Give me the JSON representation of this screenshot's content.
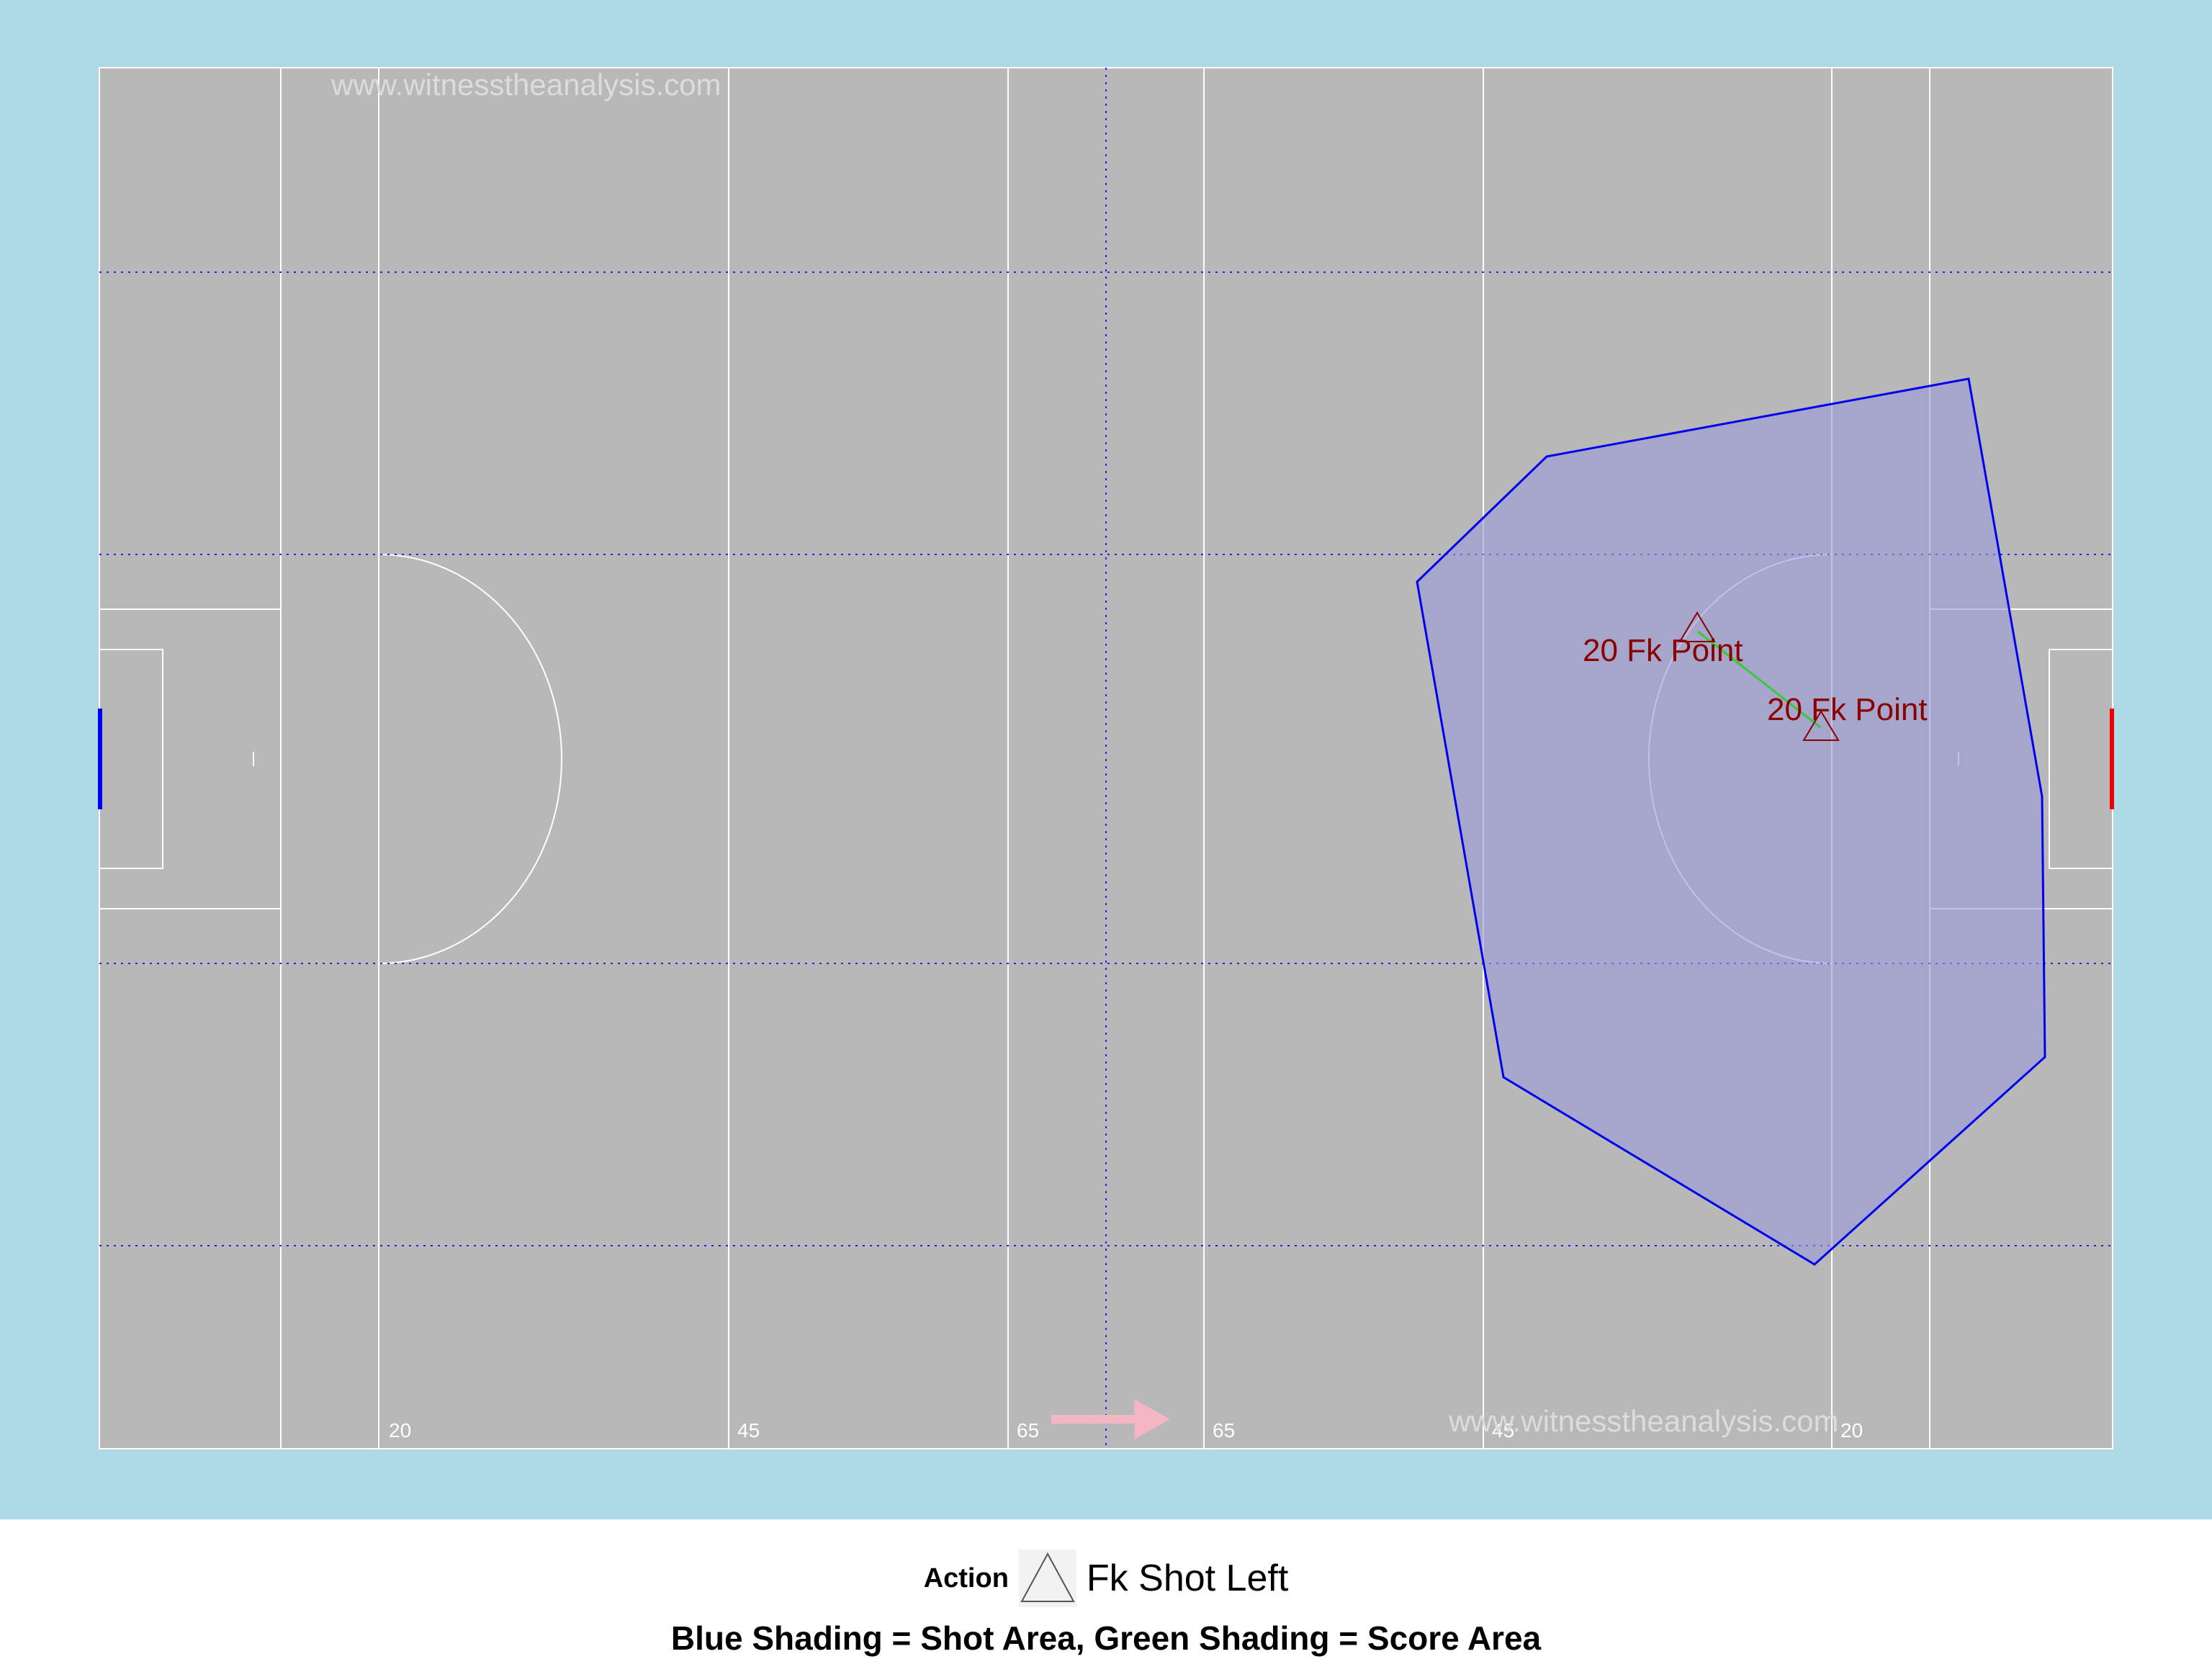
{
  "colors": {
    "background": "#add8e6",
    "pitch": "#b8b8b8",
    "pitch_lines": "#ffffff",
    "guide_lines": "#2222ee",
    "shot_area_fill": "#9a9ad8",
    "shot_area_stroke": "#0000ee",
    "marker_stroke": "#8b0000",
    "marker_label": "#8b0000",
    "connector": "#33cc33",
    "left_goal": "#0000ee",
    "right_goal": "#ee0000",
    "direction_arrow": "#f4b6c2",
    "watermark": "#dcdcdc"
  },
  "watermarks": [
    "www.witnesstheanalysis.com",
    "www.witnesstheanalysis.com"
  ],
  "distance_labels": [
    "20",
    "45",
    "65",
    "65",
    "45",
    "20"
  ],
  "markers": [
    {
      "label": "20 Fk Point",
      "shape": "triangle"
    },
    {
      "label": "20 Fk Point",
      "shape": "triangle"
    }
  ],
  "legend": {
    "title": "Action",
    "entry": "Fk Shot Left",
    "symbol": "triangle-icon"
  },
  "caption": "Blue Shading = Shot Area, Green Shading = Score Area"
}
